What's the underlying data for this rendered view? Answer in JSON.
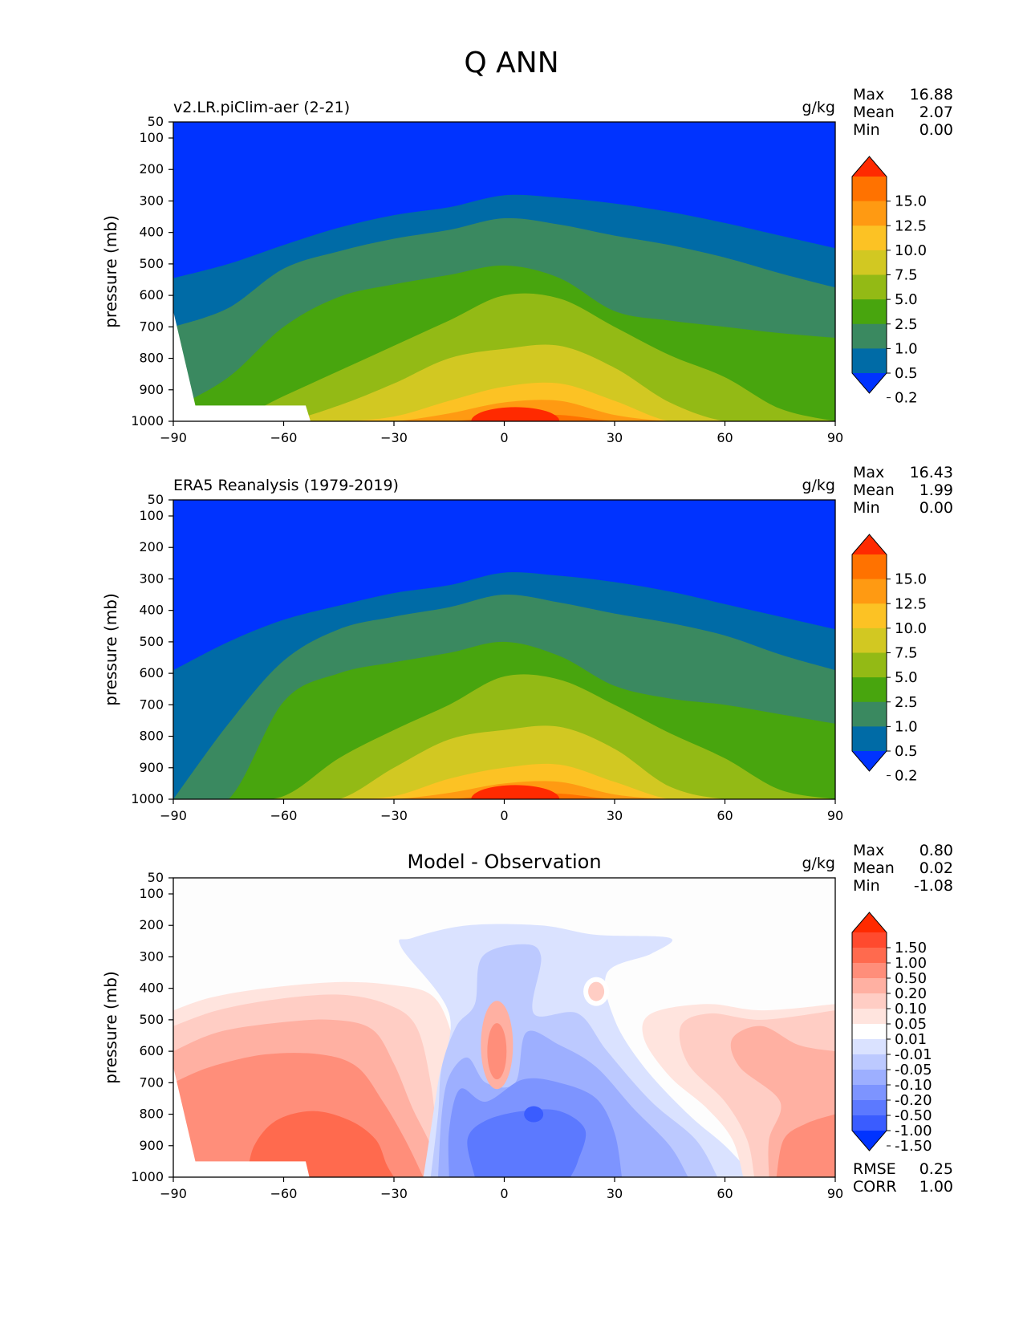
{
  "figure": {
    "title": "Q ANN"
  },
  "chart_data": [
    {
      "type": "contour",
      "title": "v2.LR.piClim-aer (2-21)",
      "title_position": "left",
      "units": "g/kg",
      "ylabel": "pressure (mb)",
      "xlim": [
        -90,
        90
      ],
      "ylim": [
        1000,
        50
      ],
      "xticks": [
        "−90",
        "−60",
        "−30",
        "0",
        "30",
        "60",
        "90"
      ],
      "yticks": [
        "50",
        "100",
        "200",
        "300",
        "400",
        "500",
        "600",
        "700",
        "800",
        "900",
        "1000"
      ],
      "stats": [
        {
          "label": "Max",
          "value": "16.88"
        },
        {
          "label": "Mean",
          "value": "2.07"
        },
        {
          "label": "Min",
          "value": "0.00"
        }
      ],
      "colorbar": {
        "levels": [
          "15.0",
          "12.5",
          "10.0",
          "7.5",
          "5.0",
          "2.5",
          "1.0",
          "0.5",
          "0.2"
        ],
        "colors": [
          "#ff2a00",
          "#ff7200",
          "#ff9a12",
          "#fcc224",
          "#d2c822",
          "#93ba15",
          "#48a50e",
          "#3a8960",
          "#006ba6",
          "#0033ff"
        ]
      },
      "contours": {
        "lat": [
          -90,
          -75,
          -60,
          -45,
          -30,
          -15,
          0,
          15,
          30,
          45,
          60,
          75,
          90
        ],
        "bands": [
          {
            "level": "0.2",
            "p": [
              545,
              500,
              440,
              385,
              345,
              320,
              282,
              290,
              308,
              335,
              370,
              410,
              450
            ]
          },
          {
            "level": "0.5",
            "p": [
              700,
              640,
              515,
              460,
              420,
              392,
              355,
              375,
              410,
              440,
              480,
              530,
              575
            ]
          },
          {
            "level": "1.0",
            "p": [
              960,
              860,
              700,
              605,
              565,
              535,
              505,
              545,
              650,
              680,
              700,
              720,
              735
            ]
          },
          {
            "level": "2.5",
            "p": [
              1000,
              1000,
              920,
              840,
              760,
              680,
              600,
              610,
              700,
              790,
              860,
              960,
              1000
            ]
          },
          {
            "level": "5.0",
            "p": [
              1000,
              1000,
              1000,
              950,
              880,
              800,
              770,
              760,
              830,
              940,
              1000,
              1000,
              1000
            ]
          },
          {
            "level": "7.5",
            "p": [
              1000,
              1000,
              1000,
              1000,
              985,
              935,
              890,
              880,
              935,
              1000,
              1000,
              1000,
              1000
            ]
          },
          {
            "level": "10.0",
            "p": [
              1000,
              1000,
              1000,
              1000,
              1000,
              975,
              940,
              935,
              980,
              1000,
              1000,
              1000,
              1000
            ]
          },
          {
            "level": "12.5",
            "p": [
              1000,
              1000,
              1000,
              1000,
              1000,
              1000,
              985,
              980,
              1000,
              1000,
              1000,
              1000,
              1000
            ]
          }
        ],
        "missing_region": {
          "lat_range": [
            -90,
            -54
          ],
          "p_above": 950
        }
      }
    },
    {
      "type": "contour",
      "title": "ERA5 Reanalysis (1979-2019)",
      "title_position": "left",
      "units": "g/kg",
      "ylabel": "pressure (mb)",
      "xlim": [
        -90,
        90
      ],
      "ylim": [
        1000,
        50
      ],
      "xticks": [
        "−90",
        "−60",
        "−30",
        "0",
        "30",
        "60",
        "90"
      ],
      "yticks": [
        "50",
        "100",
        "200",
        "300",
        "400",
        "500",
        "600",
        "700",
        "800",
        "900",
        "1000"
      ],
      "stats": [
        {
          "label": "Max",
          "value": "16.43"
        },
        {
          "label": "Mean",
          "value": "1.99"
        },
        {
          "label": "Min",
          "value": "0.00"
        }
      ],
      "colorbar": {
        "levels": [
          "15.0",
          "12.5",
          "10.0",
          "7.5",
          "5.0",
          "2.5",
          "1.0",
          "0.5",
          "0.2"
        ],
        "colors": [
          "#ff2a00",
          "#ff7200",
          "#ff9a12",
          "#fcc224",
          "#d2c822",
          "#93ba15",
          "#48a50e",
          "#3a8960",
          "#006ba6",
          "#0033ff"
        ]
      },
      "contours": {
        "lat": [
          -90,
          -75,
          -60,
          -45,
          -30,
          -15,
          0,
          15,
          30,
          45,
          60,
          75,
          90
        ],
        "bands": [
          {
            "level": "0.2",
            "p": [
              590,
              500,
              430,
              385,
              345,
              320,
              280,
              290,
              310,
              340,
              380,
              420,
              460
            ]
          },
          {
            "level": "0.5",
            "p": [
              1000,
              760,
              560,
              460,
              420,
              390,
              350,
              375,
              410,
              440,
              480,
              540,
              590
            ]
          },
          {
            "level": "1.0",
            "p": [
              1000,
              1000,
              690,
              600,
              565,
              535,
              500,
              545,
              640,
              680,
              700,
              730,
              760
            ]
          },
          {
            "level": "2.5",
            "p": [
              1000,
              1000,
              990,
              870,
              780,
              700,
              610,
              620,
              700,
              790,
              870,
              970,
              1000
            ]
          },
          {
            "level": "5.0",
            "p": [
              1000,
              1000,
              1000,
              1000,
              900,
              810,
              780,
              770,
              840,
              960,
              1000,
              1000,
              1000
            ]
          },
          {
            "level": "7.5",
            "p": [
              1000,
              1000,
              1000,
              1000,
              990,
              935,
              900,
              890,
              945,
              1000,
              1000,
              1000,
              1000
            ]
          },
          {
            "level": "10.0",
            "p": [
              1000,
              1000,
              1000,
              1000,
              1000,
              980,
              950,
              945,
              985,
              1000,
              1000,
              1000,
              1000
            ]
          },
          {
            "level": "12.5",
            "p": [
              1000,
              1000,
              1000,
              1000,
              1000,
              1000,
              985,
              982,
              1000,
              1000,
              1000,
              1000,
              1000
            ]
          }
        ]
      }
    },
    {
      "type": "contour",
      "title": "Model - Observation",
      "title_position": "center",
      "units": "g/kg",
      "ylabel": "pressure (mb)",
      "xlim": [
        -90,
        90
      ],
      "ylim": [
        1000,
        50
      ],
      "xticks": [
        "−90",
        "−60",
        "−30",
        "0",
        "30",
        "60",
        "90"
      ],
      "yticks": [
        "50",
        "100",
        "200",
        "300",
        "400",
        "500",
        "600",
        "700",
        "800",
        "900",
        "1000"
      ],
      "stats": [
        {
          "label": "Max",
          "value": "0.80"
        },
        {
          "label": "Mean",
          "value": "0.02"
        },
        {
          "label": "Min",
          "value": "-1.08"
        }
      ],
      "extra_stats": [
        {
          "label": "RMSE",
          "value": "0.25"
        },
        {
          "label": "CORR",
          "value": "1.00"
        }
      ],
      "colorbar": {
        "levels": [
          "1.50",
          "1.00",
          "0.50",
          "0.20",
          "0.10",
          "0.05",
          "0.01",
          "-0.01",
          "-0.05",
          "-0.10",
          "-0.20",
          "-0.50",
          "-1.00",
          "-1.50"
        ],
        "colors": [
          "#ff2a00",
          "#ff4a2e",
          "#ff6a4e",
          "#ff8e7a",
          "#ffb0a2",
          "#ffcdc4",
          "#ffe4de",
          "#ffffff",
          "#dae2ff",
          "#bcc9ff",
          "#9dafff",
          "#7d94ff",
          "#5c79ff",
          "#3a5cff",
          "#0033ff"
        ]
      },
      "contours": {
        "positive_lat_range": [
          -90,
          -22
        ],
        "negative_lat_range": [
          -22,
          68
        ],
        "positive_right_lat_range": [
          68,
          90
        ]
      }
    }
  ]
}
